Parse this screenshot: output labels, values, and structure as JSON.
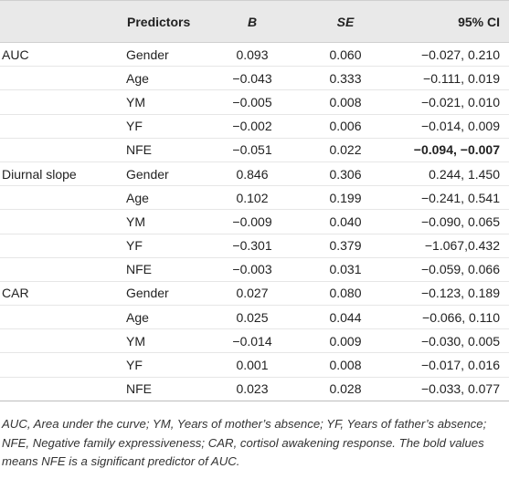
{
  "table": {
    "header": [
      "Predictors",
      "B",
      "SE",
      "95% CI"
    ],
    "groups": [
      {
        "label": "AUC",
        "rows": [
          [
            "Gender",
            "0.093",
            "0.060",
            "−0.027, 0.210"
          ],
          [
            "Age",
            "−0.043",
            "0.333",
            "−0.111, 0.019"
          ],
          [
            "YM",
            "−0.005",
            "0.008",
            "−0.021, 0.010"
          ],
          [
            "YF",
            "−0.002",
            "0.006",
            "−0.014, 0.009"
          ],
          [
            "NFE",
            "−0.051",
            "0.022",
            "−0.094, −0.007"
          ]
        ]
      },
      {
        "label": "Diurnal slope",
        "rows": [
          [
            "Gender",
            "0.846",
            "0.306",
            "0.244, 1.450"
          ],
          [
            "Age",
            "0.102",
            "0.199",
            "−0.241, 0.541"
          ],
          [
            "YM",
            "−0.009",
            "0.040",
            "−0.090, 0.065"
          ],
          [
            "YF",
            "−0.301",
            "0.379",
            "−1.067,0.432"
          ],
          [
            "NFE",
            "−0.003",
            "0.031",
            "−0.059, 0.066"
          ]
        ]
      },
      {
        "label": "CAR",
        "rows": [
          [
            "Gender",
            "0.027",
            "0.080",
            "−0.123, 0.189"
          ],
          [
            "Age",
            "0.025",
            "0.044",
            "−0.066, 0.110"
          ],
          [
            "YM",
            "−0.014",
            "0.009",
            "−0.030, 0.005"
          ],
          [
            "YF",
            "0.001",
            "0.008",
            "−0.017, 0.016"
          ],
          [
            "NFE",
            "0.023",
            "0.028",
            "−0.033, 0.077"
          ]
        ]
      }
    ],
    "note": "AUC, Area under the curve; YM, Years of mother’s absence; YF, Years of father’s absence; NFE, Negative family expressiveness; CAR, cortisol awakening response. The bold values means NFE is a significant predictor of AUC."
  }
}
